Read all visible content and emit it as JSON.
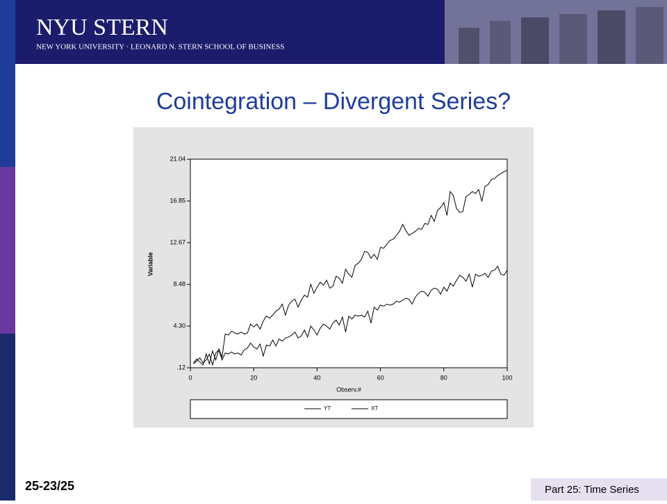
{
  "header": {
    "logo": "NYU STERN",
    "school": "NEW YORK UNIVERSITY · LEONARD N. STERN SCHOOL OF BUSINESS"
  },
  "slide_title": "Cointegration – Divergent Series?",
  "footer": {
    "page": "25-23/25",
    "part": "Part 25: Time Series"
  },
  "chart_data": {
    "type": "line",
    "x_label": "Observ.#",
    "y_label": "Variable",
    "x": [
      1,
      2,
      3,
      4,
      5,
      6,
      7,
      8,
      9,
      10,
      11,
      12,
      13,
      14,
      15,
      16,
      17,
      18,
      19,
      20,
      21,
      22,
      23,
      24,
      25,
      26,
      27,
      28,
      29,
      30,
      31,
      32,
      33,
      34,
      35,
      36,
      37,
      38,
      39,
      40,
      41,
      42,
      43,
      44,
      45,
      46,
      47,
      48,
      49,
      50,
      51,
      52,
      53,
      54,
      55,
      56,
      57,
      58,
      59,
      60,
      61,
      62,
      63,
      64,
      65,
      66,
      67,
      68,
      69,
      70,
      71,
      72,
      73,
      74,
      75,
      76,
      77,
      78,
      79,
      80,
      81,
      82,
      83,
      84,
      85,
      86,
      87,
      88,
      89,
      90,
      91,
      92,
      93,
      94,
      95,
      96,
      97,
      98,
      99,
      100
    ],
    "series": [
      {
        "name": "YT",
        "color": "#000000",
        "values": [
          0.6,
          1.0,
          0.7,
          0.4,
          1.5,
          0.5,
          1.8,
          0.9,
          2.0,
          1.2,
          3.5,
          3.4,
          3.8,
          3.6,
          3.5,
          3.7,
          3.5,
          3.6,
          4.5,
          4.2,
          4.5,
          4.0,
          4.8,
          5.3,
          5.1,
          5.4,
          5.8,
          6.0,
          6.5,
          5.4,
          6.4,
          6.8,
          7.0,
          6.2,
          6.9,
          7.4,
          7.2,
          8.5,
          7.6,
          8.2,
          8.7,
          8.4,
          8.9,
          8.1,
          8.3,
          9.3,
          9.1,
          8.6,
          10.0,
          9.5,
          9.2,
          10.4,
          10.6,
          11.0,
          11.8,
          11.7,
          11.1,
          11.5,
          11.0,
          12.2,
          12.1,
          12.5,
          12.9,
          13.0,
          13.4,
          13.8,
          14.5,
          13.9,
          13.4,
          13.6,
          13.8,
          14.1,
          14.0,
          14.6,
          14.5,
          15.4,
          14.8,
          15.9,
          16.2,
          16.7,
          15.4,
          17.8,
          17.4,
          16.1,
          15.7,
          15.8,
          17.3,
          17.5,
          17.8,
          17.6,
          18.0,
          16.8,
          18.3,
          18.5,
          19.0,
          19.1,
          19.4,
          19.6,
          19.8,
          19.9
        ]
      },
      {
        "name": "XT",
        "color": "#000000",
        "values": [
          0.5,
          0.8,
          1.1,
          0.6,
          0.9,
          1.5,
          0.4,
          1.6,
          1.9,
          0.9,
          1.6,
          1.5,
          1.7,
          1.5,
          1.6,
          1.4,
          1.9,
          2.1,
          2.6,
          2.2,
          2.0,
          2.5,
          1.3,
          2.4,
          2.3,
          2.9,
          2.3,
          3.0,
          2.8,
          3.1,
          3.2,
          3.4,
          3.7,
          3.1,
          3.3,
          3.9,
          3.2,
          4.3,
          3.9,
          3.4,
          4.1,
          4.5,
          4.3,
          4.0,
          4.6,
          4.9,
          4.4,
          5.2,
          3.7,
          5.3,
          5.0,
          5.4,
          5.3,
          5.4,
          5.2,
          5.8,
          4.6,
          6.2,
          5.9,
          6.4,
          6.3,
          6.5,
          6.4,
          6.5,
          6.8,
          6.7,
          6.9,
          7.1,
          7.0,
          6.5,
          7.2,
          7.6,
          7.8,
          7.7,
          7.3,
          7.9,
          8.1,
          8.0,
          7.5,
          8.2,
          7.8,
          8.6,
          8.3,
          8.9,
          9.4,
          9.2,
          8.8,
          9.5,
          8.2,
          9.5,
          9.3,
          9.4,
          9.6,
          9.2,
          9.8,
          9.9,
          10.3,
          9.5,
          9.4,
          9.9
        ]
      }
    ],
    "xlim": [
      0,
      100
    ],
    "xticks": [
      0,
      20,
      40,
      60,
      80,
      100
    ],
    "ylim": [
      0.12,
      21.04
    ],
    "yticks": [
      {
        "value": 0.12,
        "label": ".12"
      },
      {
        "value": 4.3,
        "label": "4.30"
      },
      8.48,
      12.67,
      16.85,
      21.04
    ]
  }
}
